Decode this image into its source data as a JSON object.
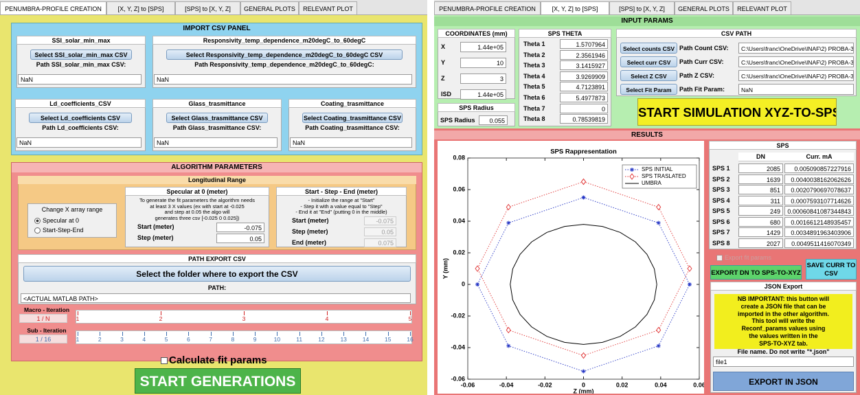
{
  "left": {
    "tabs": [
      "PENUMBRA-PROFILE CREATION",
      "[X, Y, Z] to [SPS]",
      "[SPS] to [X, Y, Z]",
      "GENERAL PLOTS",
      "RELEVANT PLOT"
    ],
    "active_tab": 0,
    "import_panel": {
      "title": "IMPORT CSV PANEL",
      "boxes": [
        {
          "title": "SSI_solar_min_max",
          "button": "Select SSI_solar_min_max CSV",
          "path_label": "Path SSI_solar_min_max CSV:",
          "path_value": "NaN"
        },
        {
          "title": "Responsivity_temp_dependence_m20degC_to_60degC",
          "button": "Select Responsivity_temp_dependence_m20degC_to_60degC CSV",
          "path_label": "Path Responsivity_temp_dependence_m20degC_to_60degC:",
          "path_value": "NaN"
        },
        {
          "title": "Ld_coefficients_CSV",
          "button": "Select Ld_coefficients CSV",
          "path_label": "Path Ld_coefficients CSV:",
          "path_value": "NaN"
        },
        {
          "title": "Glass_trasmittance",
          "button": "Select Glass_trasmittance CSV",
          "path_label": "Path Glass_trasmittance CSV:",
          "path_value": "NaN"
        },
        {
          "title": "Coating_trasmittance",
          "button": "Select Coating_trasmittance CSV",
          "path_label": "Path Coating_trasmittance CSV:",
          "path_value": "NaN"
        }
      ]
    },
    "algorithm": {
      "title": "ALGORITHM PARAMETERS",
      "longitudinal": {
        "title": "Longitudinal Range",
        "change_x": {
          "title": "Change X array range",
          "options": [
            "Specular at 0",
            "Start-Step-End"
          ]
        },
        "specular": {
          "title": "Specular at 0 (meter)",
          "description": [
            "To generate the fit parameters the algorithm needs",
            "at least 3 X values (ex with start at -0.025",
            "and step at 0.05 the algo will",
            "generates three csv [-0.025 0 0.025])"
          ],
          "fields": [
            {
              "label": "Start (meter)",
              "value": -0.075
            },
            {
              "label": "Step (meter)",
              "value": 0.05
            }
          ]
        },
        "sse": {
          "title": "Start - Step - End (meter)",
          "description": [
            "- Initialize the range at \"Start\"",
            "- Step it with a value equal to \"Step\"",
            "- End it at \"End\" (putting 0 in the middle)"
          ],
          "fields": [
            {
              "label": "Start (meter)",
              "value": -0.075
            },
            {
              "label": "Step (meter)",
              "value": 0.05
            },
            {
              "label": "End (meter)",
              "value": 0.075
            }
          ]
        }
      },
      "path_export": {
        "title": "PATH EXPORT CSV",
        "button": "Select the folder where to export the CSV",
        "path_label": "PATH:",
        "path_value": "<ACTUAL MATLAB PATH>"
      },
      "macro_iteration": {
        "label": "Macro - Iteration",
        "value": "1 / N",
        "ticks": [
          1,
          2,
          3,
          4,
          5
        ]
      },
      "sub_iteration": {
        "label": "Sub - Iteration",
        "value": "1 / 16",
        "ticks": [
          1,
          2,
          3,
          4,
          5,
          6,
          7,
          8,
          9,
          10,
          11,
          12,
          13,
          14,
          15,
          16
        ]
      }
    },
    "calculate_fit": "Calculate fit params",
    "start_button": "START GENERATIONS"
  },
  "right": {
    "tabs": [
      "PENUMBRA-PROFILE CREATION",
      "[X, Y, Z] to [SPS]",
      "[SPS] to [X, Y, Z]",
      "GENERAL PLOTS",
      "RELEVANT PLOT"
    ],
    "active_tab": 1,
    "input_params": {
      "title": "INPUT PARAMS",
      "coordinates": {
        "title": "COORDINATES (mm)",
        "rows": [
          {
            "label": "X",
            "value": "1.44e+05"
          },
          {
            "label": "Y",
            "value": 10
          },
          {
            "label": "Z",
            "value": 3
          },
          {
            "label": "ISD",
            "value": "1.44e+05"
          }
        ]
      },
      "sps_radius": {
        "title": "SPS Radius",
        "label": "SPS Radius",
        "value": 0.055
      },
      "sps_theta": {
        "title": "SPS THETA",
        "rows": [
          {
            "label": "Theta 1",
            "value": "1.5707964"
          },
          {
            "label": "Theta 2",
            "value": "2.3561946"
          },
          {
            "label": "Theta 3",
            "value": "3.1415927"
          },
          {
            "label": "Theta 4",
            "value": "3.9269909"
          },
          {
            "label": "Theta 5",
            "value": "4.7123891"
          },
          {
            "label": "Theta 6",
            "value": "5.4977873"
          },
          {
            "label": "Theta 7",
            "value": "0"
          },
          {
            "label": "Theta 8",
            "value": "0.78539819"
          }
        ]
      },
      "csv_path": {
        "title": "CSV PATH",
        "rows": [
          {
            "button": "Select counts CSV",
            "label": "Path Count CSV:",
            "value": "C:\\Users\\franc\\OneDrive\\INAF\\2) PROBA-3\\1"
          },
          {
            "button": "Select curr CSV",
            "label": "Path Curr CSV:",
            "value": "C:\\Users\\franc\\OneDrive\\INAF\\2) PROBA-3\\1"
          },
          {
            "button": "Select Z CSV",
            "label": "Path Z CSV:",
            "value": "C:\\Users\\franc\\OneDrive\\INAF\\2) PROBA-3\\1"
          },
          {
            "button": "Select Fit Param",
            "label": "Path Fit Param:",
            "value": "NaN"
          }
        ]
      },
      "start_button": "START SIMULATION XYZ-TO-SPS"
    },
    "results": {
      "title": "RESULTS",
      "sps_table": {
        "title": "SPS",
        "columns": [
          "DN",
          "Curr. mA"
        ],
        "rows": [
          {
            "label": "SPS 1",
            "dn": 2085,
            "curr": "0.005090857227916"
          },
          {
            "label": "SPS 2",
            "dn": 1639,
            "curr": "0.0040038162062626"
          },
          {
            "label": "SPS 3",
            "dn": 851,
            "curr": "0.0020790697078637"
          },
          {
            "label": "SPS 4",
            "dn": 311,
            "curr": "0.0007593107714626"
          },
          {
            "label": "SPS 5",
            "dn": 249,
            "curr": "0.00060841087344843"
          },
          {
            "label": "SPS 6",
            "dn": 680,
            "curr": "0.0016612148935457"
          },
          {
            "label": "SPS 7",
            "dn": 1429,
            "curr": "0.0034891963403906"
          },
          {
            "label": "SPS 8",
            "dn": 2027,
            "curr": "0.0049511416070349"
          }
        ]
      },
      "export_fit": "Export fit params",
      "export_dn_button": "EXPORT DN TO SPS-TO-XYZ",
      "save_curr_button": "SAVE CURR TO CSV",
      "json_export": {
        "title": "JSON Export",
        "note": [
          "NB IMPORTANT: this button will",
          "create a JSON file that can be",
          "imported in the other algorithm.",
          "This tool will write the",
          "Reconf_params values using",
          "the values written in the",
          "SPS-TO-XYZ tab."
        ],
        "file_label": "File name. Do not write \"*.json\"",
        "file_value": "file1",
        "button": "EXPORT IN JSON"
      }
    }
  },
  "chart_data": {
    "type": "line",
    "title": "SPS Rappresentation",
    "xlabel": "Z (mm)",
    "ylabel": "Y (mm)",
    "xlim": [
      -0.06,
      0.06
    ],
    "ylim": [
      -0.06,
      0.08
    ],
    "xticks": [
      -0.06,
      -0.04,
      -0.02,
      0,
      0.02,
      0.04,
      0.06
    ],
    "yticks": [
      -0.06,
      -0.04,
      -0.02,
      0,
      0.02,
      0.04,
      0.06,
      0.08
    ],
    "grid": false,
    "legend": "upper right",
    "series": [
      {
        "name": "SPS INITIAL",
        "color": "#2233c4",
        "marker": "star",
        "linestyle": "dotted",
        "x": [
          0,
          -0.0389,
          -0.055,
          -0.0389,
          0,
          0.0389,
          0.055,
          0.0389,
          0
        ],
        "y": [
          0.055,
          0.0389,
          0,
          -0.0389,
          -0.055,
          -0.0389,
          0,
          0.0389,
          0.055
        ]
      },
      {
        "name": "SPS TRASLATED",
        "color": "#e03030",
        "marker": "diamond",
        "linestyle": "dotted",
        "x": [
          0,
          -0.0389,
          -0.055,
          -0.0389,
          0,
          0.0389,
          0.055,
          0.0389,
          0
        ],
        "y": [
          0.065,
          0.0489,
          0.01,
          -0.0289,
          -0.045,
          -0.0289,
          0.01,
          0.0489,
          0.065
        ]
      },
      {
        "name": "UMBRA",
        "color": "#000000",
        "linestyle": "solid",
        "x": [
          0.038,
          0.0367,
          0.0329,
          0.0269,
          0.019,
          0.0098,
          0,
          -0.0098,
          -0.019,
          -0.0269,
          -0.0329,
          -0.0367,
          -0.038,
          -0.0367,
          -0.0329,
          -0.0269,
          -0.019,
          -0.0098,
          0,
          0.0098,
          0.019,
          0.0269,
          0.0329,
          0.0367,
          0.038
        ],
        "y": [
          0,
          0.0098,
          0.019,
          0.0269,
          0.0329,
          0.0367,
          0.038,
          0.0367,
          0.0329,
          0.0269,
          0.019,
          0.0098,
          0,
          -0.0098,
          -0.019,
          -0.0269,
          -0.0329,
          -0.0367,
          -0.038,
          -0.0367,
          -0.0329,
          -0.0269,
          -0.019,
          -0.0098,
          0
        ]
      }
    ]
  }
}
